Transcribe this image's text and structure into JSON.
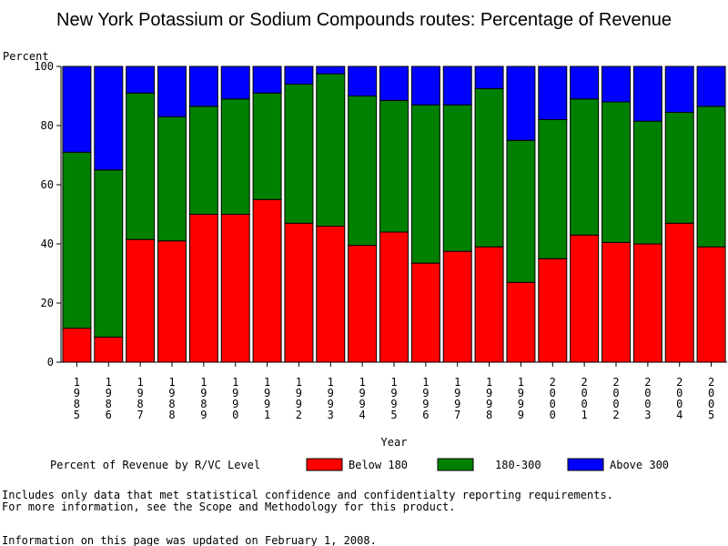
{
  "chart_data": {
    "type": "bar",
    "stacked": true,
    "title": "New York Potassium or Sodium Compounds routes: Percentage of Revenue",
    "ylabel": "Percent",
    "xlabel": "Year",
    "ylim": [
      0,
      100
    ],
    "yticks": [
      0,
      20,
      40,
      60,
      80,
      100
    ],
    "categories": [
      "1985",
      "1986",
      "1987",
      "1988",
      "1989",
      "1990",
      "1991",
      "1992",
      "1993",
      "1994",
      "1995",
      "1996",
      "1997",
      "1998",
      "1999",
      "2000",
      "2001",
      "2002",
      "2003",
      "2004",
      "2005"
    ],
    "series": [
      {
        "name": "Below 180",
        "color": "#ff0000",
        "values": [
          11.5,
          8.5,
          41.5,
          41,
          50,
          50,
          55,
          47,
          46,
          39.5,
          44,
          33.5,
          37.5,
          39,
          27,
          35,
          43,
          40.5,
          40,
          47,
          39
        ]
      },
      {
        "name": "180-300",
        "color": "#008000",
        "values": [
          59.5,
          56.5,
          49.5,
          42,
          36.5,
          39,
          36,
          47,
          51.5,
          50.5,
          44.5,
          53.5,
          49.5,
          53.5,
          48,
          47,
          46,
          47.5,
          41.5,
          37.5,
          47.5
        ]
      },
      {
        "name": "Above 300",
        "color": "#0000ff",
        "values": [
          29,
          35,
          9,
          17,
          13.5,
          11,
          9,
          6,
          2.5,
          10,
          11.5,
          13,
          13,
          7.5,
          25,
          18,
          11,
          12,
          18.5,
          15.5,
          13.5
        ]
      }
    ],
    "legend": {
      "title": "Percent of Revenue by R/VC Level",
      "placement": "bottom"
    },
    "grid": false
  },
  "footnotes": {
    "line1": "Includes only data that met statistical confidence and confidentialty reporting requirements.",
    "line2": "For more information, see the Scope and Methodology for this product.",
    "updated": "Information on this page was updated on February 1, 2008."
  }
}
